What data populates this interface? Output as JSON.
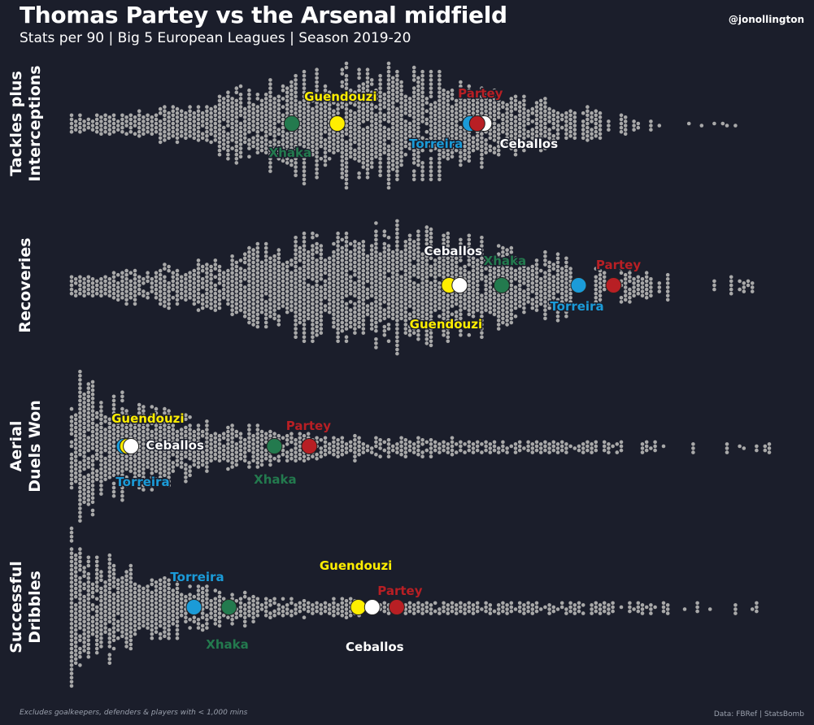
{
  "header": {
    "title": "Thomas Partey vs the Arsenal midfield",
    "subtitle": "Stats per 90 | Big 5 European Leagues | Season 2019-20",
    "credit": "@jonollington"
  },
  "footer": {
    "note": "Excludes goalkeepers, defenders & players with < 1,000 mins",
    "source": "Data: FBRef | StatsBomb"
  },
  "colors": {
    "background": "#1b1e2b",
    "swarm_dot": "#a9a9a9",
    "Partey": "#b81f24",
    "Guendouzi": "#ffee00",
    "Torreira": "#1b9bd8",
    "Ceballos": "#ffffff",
    "Xhaka": "#237a4e"
  },
  "chart_data": [
    {
      "type": "swarm",
      "metric": "Tackles plus Interceptions",
      "row_label": [
        "Tackles plus",
        "Interceptions"
      ],
      "players": [
        {
          "name": "Xhaka",
          "value": 0.315
        },
        {
          "name": "Guendouzi",
          "value": 0.38
        },
        {
          "name": "Torreira",
          "value": 0.57
        },
        {
          "name": "Ceballos",
          "value": 0.59
        },
        {
          "name": "Partey",
          "value": 0.58
        }
      ]
    },
    {
      "type": "swarm",
      "metric": "Recoveries",
      "row_label": [
        "Recoveries"
      ],
      "players": [
        {
          "name": "Guendouzi",
          "value": 0.54
        },
        {
          "name": "Ceballos",
          "value": 0.555
        },
        {
          "name": "Xhaka",
          "value": 0.615
        },
        {
          "name": "Torreira",
          "value": 0.725
        },
        {
          "name": "Partey",
          "value": 0.775
        }
      ]
    },
    {
      "type": "swarm",
      "metric": "Aerial Duels Won",
      "row_label": [
        "Aerial",
        "Duels Won"
      ],
      "players": [
        {
          "name": "Torreira",
          "value": 0.075
        },
        {
          "name": "Guendouzi",
          "value": 0.08
        },
        {
          "name": "Ceballos",
          "value": 0.085
        },
        {
          "name": "Xhaka",
          "value": 0.29
        },
        {
          "name": "Partey",
          "value": 0.34
        }
      ]
    },
    {
      "type": "swarm",
      "metric": "Successful Dribbles",
      "row_label": [
        "Successful",
        "Dribbles"
      ],
      "players": [
        {
          "name": "Torreira",
          "value": 0.175
        },
        {
          "name": "Xhaka",
          "value": 0.225
        },
        {
          "name": "Guendouzi",
          "value": 0.41
        },
        {
          "name": "Ceballos",
          "value": 0.43
        },
        {
          "name": "Partey",
          "value": 0.465
        }
      ]
    }
  ]
}
